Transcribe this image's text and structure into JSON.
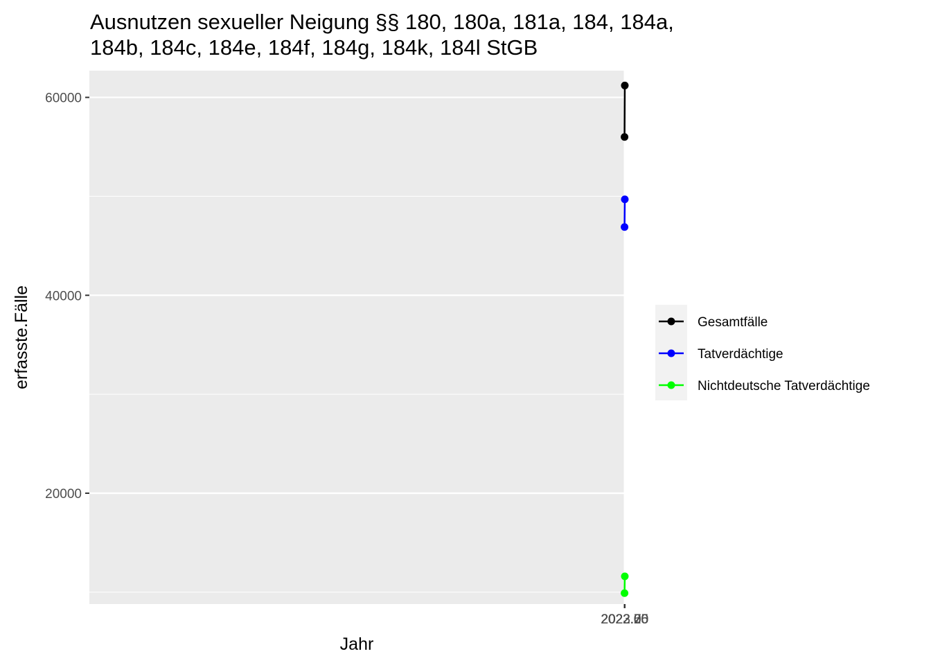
{
  "chart_data": {
    "type": "line",
    "title_lines": [
      "Ausnutzen sexueller Neigung §§ 180, 180a, 181a, 184, 184a,",
      "184b, 184c, 184e, 184f, 184g, 184k, 184l StGB"
    ],
    "xlabel": "Jahr",
    "ylabel": "erfasste.Fälle",
    "xlim": [
      1.9818,
      2023.0482
    ],
    "ylim": [
      8800,
      62700
    ],
    "xticks": [
      2022.0,
      2022.25,
      2022.5,
      2022.75,
      2023.0
    ],
    "xtick_labels": [
      "2022.00",
      "2022.25",
      "2022.50",
      "2022.75",
      "2023.00"
    ],
    "yticks": [
      20000,
      40000,
      60000
    ],
    "ytick_labels": [
      "20000",
      "40000",
      "60000"
    ],
    "grid": true,
    "legend_position": "right",
    "x": [
      2022,
      2023
    ],
    "series": [
      {
        "name": "Gesamtfälle",
        "color": "#000000",
        "values": [
          56000,
          61200
        ]
      },
      {
        "name": "Tatverdächtige",
        "color": "#0000ff",
        "values": [
          46900,
          49700
        ]
      },
      {
        "name": "Nichtdeutsche Tatverdächtige",
        "color": "#00ff00",
        "values": [
          9900,
          11600
        ]
      }
    ]
  }
}
